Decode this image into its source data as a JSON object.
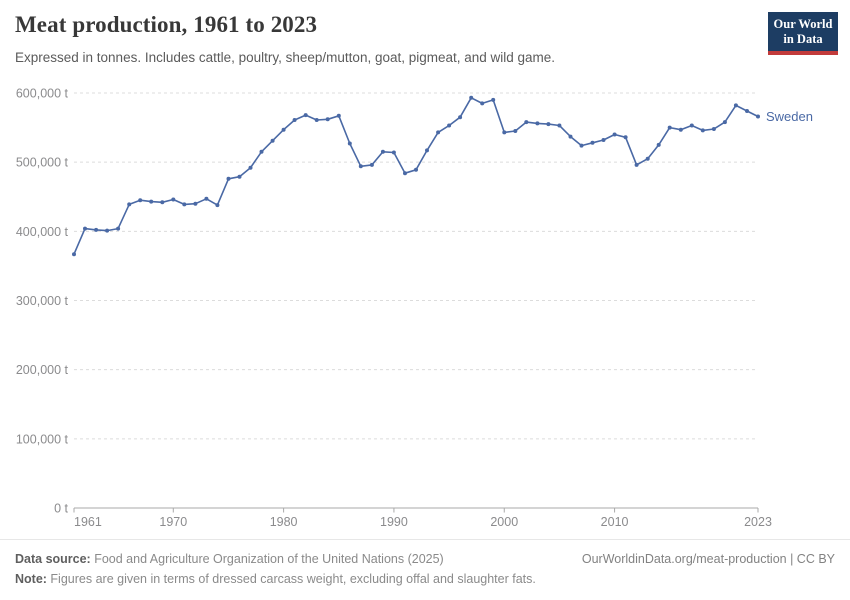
{
  "header": {
    "title": "Meat production, 1961 to 2023",
    "subtitle": "Expressed in tonnes. Includes cattle, poultry, sheep/mutton, goat, pigmeat, and wild game.",
    "logo": {
      "line1": "Our World",
      "line2": "in Data"
    }
  },
  "chart_data": {
    "type": "line",
    "title": "Meat production, 1961 to 2023",
    "subtitle": "Expressed in tonnes. Includes cattle, poultry, sheep/mutton, goat, pigmeat, and wild game.",
    "xlabel": "",
    "ylabel": "",
    "unit_suffix": " t",
    "xlim": [
      1961,
      2023
    ],
    "ylim": [
      0,
      600000
    ],
    "xticks": [
      1961,
      1970,
      1980,
      1990,
      2000,
      2010,
      2023
    ],
    "yticks": [
      0,
      100000,
      200000,
      300000,
      400000,
      500000,
      600000
    ],
    "grid": "horizontal-dashed",
    "legend_position": "end-of-line-label",
    "x": [
      1961,
      1962,
      1963,
      1964,
      1965,
      1966,
      1967,
      1968,
      1969,
      1970,
      1971,
      1972,
      1973,
      1974,
      1975,
      1976,
      1977,
      1978,
      1979,
      1980,
      1981,
      1982,
      1983,
      1984,
      1985,
      1986,
      1987,
      1988,
      1989,
      1990,
      1991,
      1992,
      1993,
      1994,
      1995,
      1996,
      1997,
      1998,
      1999,
      2000,
      2001,
      2002,
      2003,
      2004,
      2005,
      2006,
      2007,
      2008,
      2009,
      2010,
      2011,
      2012,
      2013,
      2014,
      2015,
      2016,
      2017,
      2018,
      2019,
      2020,
      2021,
      2022,
      2023
    ],
    "series": [
      {
        "name": "Sweden",
        "color": "#4a69a5",
        "values": [
          367000,
          404000,
          402000,
          401000,
          404000,
          439000,
          445000,
          443000,
          442000,
          446000,
          439000,
          440000,
          447000,
          438000,
          476000,
          479000,
          492000,
          515000,
          531000,
          547000,
          561000,
          568000,
          561000,
          562000,
          567000,
          527000,
          494000,
          496000,
          515000,
          514000,
          484000,
          489000,
          517000,
          543000,
          553000,
          565000,
          593000,
          585000,
          590000,
          543000,
          545000,
          558000,
          556000,
          555000,
          553000,
          537000,
          524000,
          528000,
          532000,
          540000,
          536000,
          496000,
          505000,
          525000,
          550000,
          547000,
          553000,
          546000,
          548000,
          558000,
          582000,
          574000,
          566000
        ]
      }
    ]
  },
  "footer": {
    "datasource_label": "Data source:",
    "datasource_text": " Food and Agriculture Organization of the United Nations (2025)",
    "citation": "OurWorldinData.org/meat-production | CC BY",
    "note_label": "Note:",
    "note_text": " Figures are given in terms of dressed carcass weight, excluding offal and slaughter fats."
  },
  "colors": {
    "line": "#4a69a5",
    "grid": "#dcdcdc",
    "axis": "#a9a9a9",
    "tick_label": "#8b8b8d",
    "logo_bg": "#1d3d63",
    "logo_stripe": "#c23b3b"
  }
}
